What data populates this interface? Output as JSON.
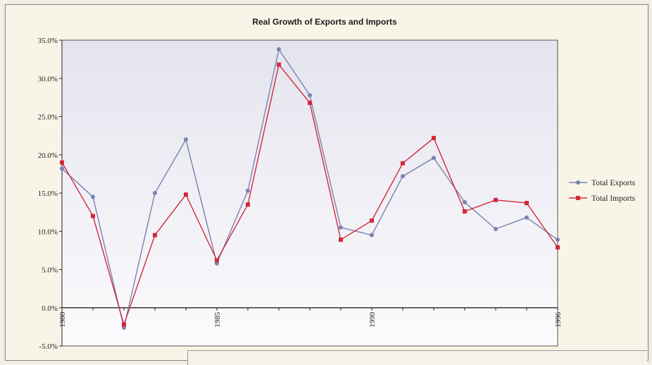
{
  "chart_data": {
    "type": "line",
    "title": "Real Growth of Exports and Imports",
    "x": [
      1980,
      1981,
      1982,
      1983,
      1984,
      1985,
      1986,
      1987,
      1988,
      1989,
      1990,
      1991,
      1992,
      1993,
      1994,
      1995,
      1996
    ],
    "x_tick_labels": [
      "1980",
      "1985",
      "1990",
      "1996"
    ],
    "x_tick_values": [
      1980,
      1985,
      1990,
      1996
    ],
    "y_tick_labels": [
      "35.0%",
      "30.0%",
      "25.0%",
      "20.0%",
      "15.0%",
      "10.0%",
      "5.0%",
      "0.0%",
      "-5.0%"
    ],
    "y_tick_values": [
      35,
      30,
      25,
      20,
      15,
      10,
      5,
      0,
      -5
    ],
    "ylim": [
      -5,
      35
    ],
    "xlim": [
      1980,
      1996
    ],
    "xlabel": "",
    "ylabel": "",
    "grid": false,
    "legend_position": "right",
    "series": [
      {
        "name": "Total Exports",
        "color": "#7a82b0",
        "marker": "circle",
        "values": [
          18.2,
          14.5,
          -2.6,
          15.0,
          22.0,
          5.8,
          15.3,
          33.8,
          27.8,
          10.5,
          9.5,
          17.2,
          19.6,
          13.8,
          10.3,
          11.8,
          8.9
        ]
      },
      {
        "name": "Total Imports",
        "color": "#d4283c",
        "marker": "square",
        "values": [
          19.0,
          12.0,
          -2.2,
          9.5,
          14.8,
          6.2,
          13.5,
          31.8,
          26.8,
          8.9,
          11.4,
          18.9,
          22.2,
          12.6,
          14.1,
          13.7,
          7.9
        ]
      }
    ]
  }
}
